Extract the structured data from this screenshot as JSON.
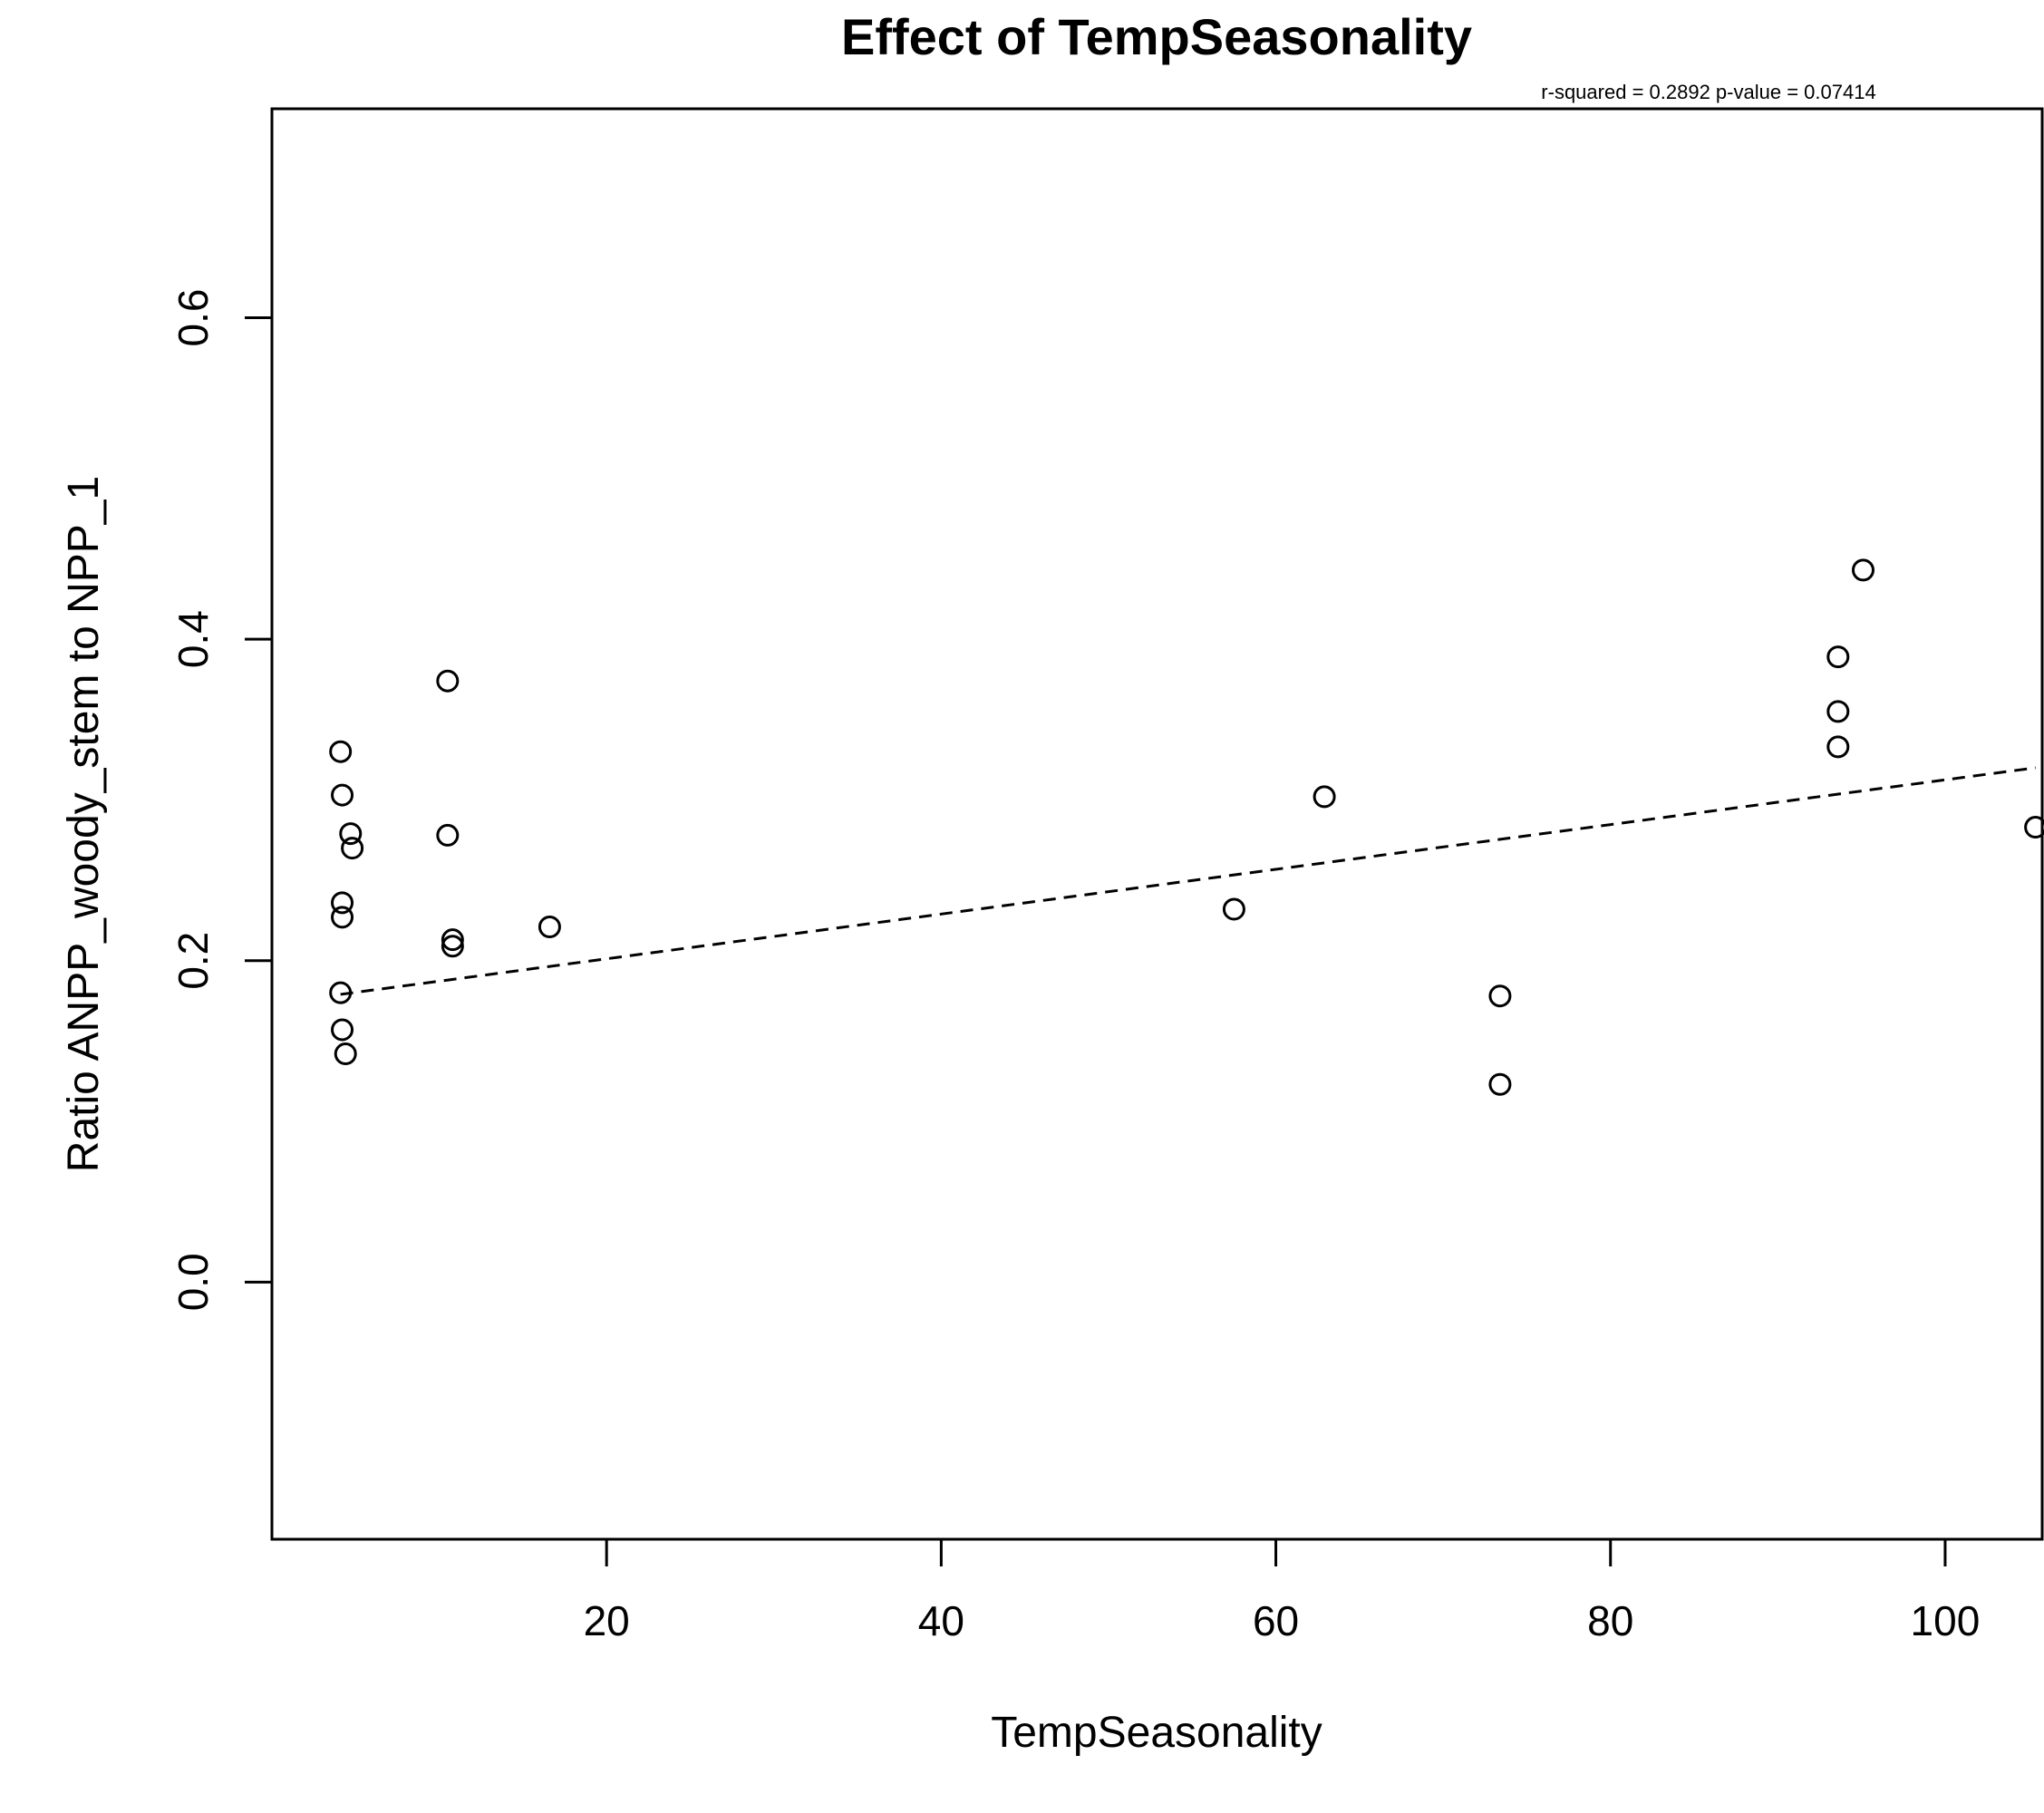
{
  "chart_data": {
    "type": "scatter",
    "title": "Effect of TempSeasonality",
    "subtitle": "r-squared =  0.2892 p-value =  0.07414",
    "xlabel": "TempSeasonality",
    "ylabel": "Ratio ANPP_woody_stem to NPP_1",
    "xlim": [
      0.0,
      105.8
    ],
    "ylim": [
      -0.16,
      0.73
    ],
    "xticks": [
      20,
      40,
      60,
      80,
      100
    ],
    "yticks": [
      0.0,
      0.2,
      0.4,
      0.6
    ],
    "xtick_labels": [
      "20",
      "40",
      "60",
      "80",
      "100"
    ],
    "ytick_labels": [
      "0.0",
      "0.2",
      "0.4",
      "0.6"
    ],
    "grid": false,
    "legend": "none",
    "points": [
      {
        "x": 4.1,
        "y": 0.33
      },
      {
        "x": 4.2,
        "y": 0.303
      },
      {
        "x": 4.7,
        "y": 0.279
      },
      {
        "x": 4.8,
        "y": 0.27
      },
      {
        "x": 4.2,
        "y": 0.236
      },
      {
        "x": 4.2,
        "y": 0.227
      },
      {
        "x": 4.1,
        "y": 0.18
      },
      {
        "x": 4.2,
        "y": 0.157
      },
      {
        "x": 4.4,
        "y": 0.142
      },
      {
        "x": 10.5,
        "y": 0.374
      },
      {
        "x": 10.5,
        "y": 0.278
      },
      {
        "x": 10.8,
        "y": 0.213
      },
      {
        "x": 10.8,
        "y": 0.209
      },
      {
        "x": 16.6,
        "y": 0.221
      },
      {
        "x": 57.5,
        "y": 0.232
      },
      {
        "x": 62.9,
        "y": 0.302
      },
      {
        "x": 73.4,
        "y": 0.178
      },
      {
        "x": 73.4,
        "y": 0.123
      },
      {
        "x": 93.6,
        "y": 0.389
      },
      {
        "x": 93.6,
        "y": 0.355
      },
      {
        "x": 93.6,
        "y": 0.333
      },
      {
        "x": 95.1,
        "y": 0.443
      },
      {
        "x": 105.4,
        "y": 0.283
      }
    ],
    "trendline": {
      "style": "dashed",
      "x": [
        4.1,
        105.4
      ],
      "y": [
        0.179,
        0.32
      ]
    }
  }
}
